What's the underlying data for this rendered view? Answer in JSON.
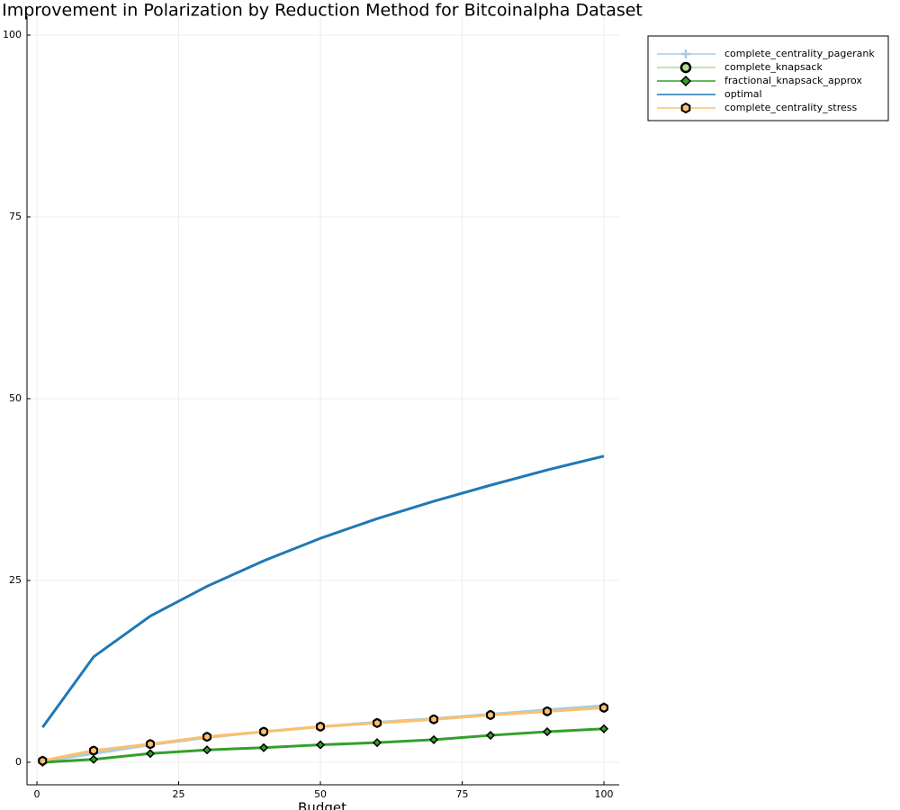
{
  "chart_data": {
    "type": "line",
    "title": "Improvement in Polarization by Reduction Method for Bitcoinalpha Dataset",
    "x_label": "Budget",
    "x": [
      1,
      10,
      20,
      30,
      40,
      50,
      60,
      70,
      80,
      90,
      100
    ],
    "series": [
      {
        "name": "complete_centrality_pagerank",
        "color": "#a6cee3",
        "marker": "cross",
        "values": [
          0.1,
          1.2,
          2.4,
          3.4,
          4.2,
          4.9,
          5.5,
          6.0,
          6.6,
          7.2,
          7.8
        ]
      },
      {
        "name": "complete_knapsack",
        "color": "#b2df8a",
        "marker": "circle",
        "values": [
          0.2,
          1.6,
          2.5,
          3.5,
          4.2,
          4.9,
          5.4,
          5.9,
          6.5,
          7.0,
          7.5
        ]
      },
      {
        "name": "fractional_knapsack_approx",
        "color": "#33a02c",
        "marker": "diamond",
        "values": [
          0.0,
          0.4,
          1.2,
          1.7,
          2.0,
          2.4,
          2.7,
          3.1,
          3.7,
          4.2,
          4.6
        ]
      },
      {
        "name": "optimal",
        "color": "#1f78b4",
        "marker": "none",
        "values": [
          4.8,
          14.5,
          20.1,
          24.2,
          27.7,
          30.8,
          33.5,
          35.9,
          38.1,
          40.2,
          42.1
        ]
      },
      {
        "name": "complete_centrality_stress",
        "color": "#fdbf6f",
        "marker": "hexagon",
        "values": [
          0.2,
          1.6,
          2.5,
          3.5,
          4.2,
          4.9,
          5.4,
          5.9,
          6.5,
          7.0,
          7.5
        ]
      }
    ],
    "xlim": [
      -1.75,
      102.7
    ],
    "ylim": [
      -3.1,
      102.6
    ],
    "xticks": [
      0,
      25,
      50,
      75,
      100
    ],
    "yticks": [
      0,
      25,
      50,
      75,
      100
    ],
    "grid": true,
    "legend": "outer-top-right"
  }
}
